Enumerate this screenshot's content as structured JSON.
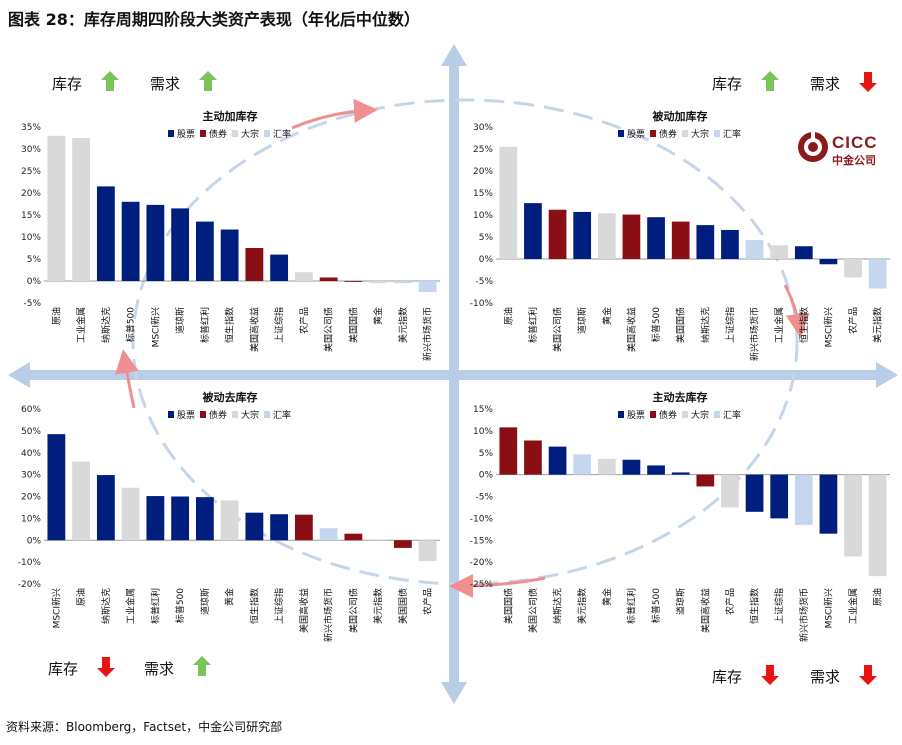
{
  "figure_title": "图表 28：库存周期四阶段大类资产表现（年化后中位数）",
  "source": "资料来源：Bloomberg，Factset，中金公司研究部",
  "logo": {
    "brand": "CICC",
    "name": "中金公司"
  },
  "legend_labels": [
    "股票",
    "债券",
    "大宗",
    "汇率"
  ],
  "colors": {
    "股票": "#001e7e",
    "债券": "#8a0f14",
    "大宗": "#d9d9d9",
    "汇率": "#c5d6ee",
    "up_arrow": "#7cc35a",
    "down_arrow": "#e8140f",
    "axis_arrow": "#b9cde6"
  },
  "quadrant_indicators": [
    {
      "id": "tl",
      "items": [
        {
          "label": "库存",
          "direction": "up"
        },
        {
          "label": "需求",
          "direction": "up"
        }
      ]
    },
    {
      "id": "tr",
      "items": [
        {
          "label": "库存",
          "direction": "up"
        },
        {
          "label": "需求",
          "direction": "down"
        }
      ]
    },
    {
      "id": "bl",
      "items": [
        {
          "label": "库存",
          "direction": "down"
        },
        {
          "label": "需求",
          "direction": "up"
        }
      ]
    },
    {
      "id": "br",
      "items": [
        {
          "label": "库存",
          "direction": "down"
        },
        {
          "label": "需求",
          "direction": "down"
        }
      ]
    }
  ],
  "chart_data": [
    {
      "type": "bar",
      "title": "主动加库存",
      "ylim": [
        -0.05,
        0.35
      ],
      "yticks": [
        "35%",
        "30%",
        "25%",
        "20%",
        "15%",
        "10%",
        "5%",
        "0%",
        "-5%"
      ],
      "categories": [
        "原油",
        "工业金属",
        "纳斯达克",
        "标普500",
        "MSCI新兴",
        "道琼斯",
        "标普红利",
        "恒生指数",
        "美国高收益",
        "上证综指",
        "农产品",
        "美国公司债",
        "美国国债",
        "黄金",
        "美元指数",
        "新兴市场货币"
      ],
      "values": [
        0.33,
        0.325,
        0.215,
        0.18,
        0.173,
        0.165,
        0.135,
        0.117,
        0.075,
        0.06,
        0.02,
        0.008,
        -0.002,
        -0.005,
        -0.005,
        -0.025
      ],
      "asset_class": [
        "大宗",
        "大宗",
        "股票",
        "股票",
        "股票",
        "股票",
        "股票",
        "股票",
        "债券",
        "股票",
        "大宗",
        "债券",
        "债券",
        "大宗",
        "汇率",
        "汇率"
      ]
    },
    {
      "type": "bar",
      "title": "被动加库存",
      "ylim": [
        -0.1,
        0.3
      ],
      "yticks": [
        "30%",
        "25%",
        "20%",
        "15%",
        "10%",
        "5%",
        "0%",
        "-5%",
        "-10%"
      ],
      "categories": [
        "原油",
        "标普红利",
        "美国公司债",
        "道琼斯",
        "黄金",
        "美国高收益",
        "标普500",
        "美国国债",
        "纳斯达克",
        "上证综指",
        "新兴市场货币",
        "工业金属",
        "恒生指数",
        "MSCI新兴",
        "农产品",
        "美元指数"
      ],
      "values": [
        0.255,
        0.127,
        0.112,
        0.107,
        0.104,
        0.101,
        0.095,
        0.085,
        0.077,
        0.066,
        0.043,
        0.031,
        0.029,
        -0.012,
        -0.042,
        -0.067
      ],
      "asset_class": [
        "大宗",
        "股票",
        "债券",
        "股票",
        "大宗",
        "债券",
        "股票",
        "债券",
        "股票",
        "股票",
        "汇率",
        "大宗",
        "股票",
        "股票",
        "大宗",
        "汇率"
      ]
    },
    {
      "type": "bar",
      "title": "被动去库存",
      "ylim": [
        -0.2,
        0.6
      ],
      "yticks": [
        "60%",
        "50%",
        "40%",
        "30%",
        "20%",
        "10%",
        "0%",
        "-10%",
        "-20%"
      ],
      "categories": [
        "MSCI新兴",
        "原油",
        "纳斯达克",
        "工业金属",
        "标普红利",
        "标普500",
        "道琼斯",
        "黄金",
        "恒生指数",
        "上证综指",
        "美国高收益",
        "新兴市场货币",
        "美国公司债",
        "美元指数",
        "美国国债",
        "农产品"
      ],
      "values": [
        0.485,
        0.36,
        0.298,
        0.24,
        0.202,
        0.2,
        0.197,
        0.182,
        0.126,
        0.119,
        0.117,
        0.055,
        0.03,
        0.0,
        -0.035,
        -0.095
      ],
      "asset_class": [
        "股票",
        "大宗",
        "股票",
        "大宗",
        "股票",
        "股票",
        "股票",
        "大宗",
        "股票",
        "股票",
        "债券",
        "汇率",
        "债券",
        "汇率",
        "债券",
        "大宗"
      ]
    },
    {
      "type": "bar",
      "title": "主动去库存",
      "ylim": [
        -0.25,
        0.15
      ],
      "yticks": [
        "15%",
        "10%",
        "5%",
        "0%",
        "-5%",
        "-10%",
        "-15%",
        "-20%",
        "-25%"
      ],
      "categories": [
        "美国国债",
        "美国公司债",
        "纳斯达克",
        "美元指数",
        "黄金",
        "标普红利",
        "标普500",
        "道琼斯",
        "美国高收益",
        "农产品",
        "恒生指数",
        "上证综指",
        "新兴市场货币",
        "MSCI新兴",
        "工业金属",
        "原油"
      ],
      "values": [
        0.108,
        0.078,
        0.064,
        0.046,
        0.036,
        0.034,
        0.021,
        0.005,
        -0.027,
        -0.075,
        -0.085,
        -0.1,
        -0.115,
        -0.135,
        -0.187,
        -0.232
      ],
      "asset_class": [
        "债券",
        "债券",
        "股票",
        "汇率",
        "大宗",
        "股票",
        "股票",
        "股票",
        "债券",
        "大宗",
        "股票",
        "股票",
        "汇率",
        "股票",
        "大宗",
        "大宗"
      ]
    }
  ]
}
